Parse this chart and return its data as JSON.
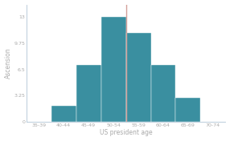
{
  "categories": [
    "35-39",
    "40-44",
    "45-49",
    "50-54",
    "55-59",
    "60-64",
    "65-69",
    "70-74"
  ],
  "values": [
    0,
    2,
    7,
    13,
    11,
    7,
    3,
    0
  ],
  "bar_color": "#3a8fa0",
  "vline_x": 4.0,
  "vline_color": "#d4a09a",
  "xlabel": "US president age",
  "ylabel": "Ascension",
  "yticks": [
    0,
    3.25,
    6.5,
    9.75,
    13
  ],
  "ytick_labels": [
    "0",
    "3.25",
    "6.5",
    "9.75",
    "13"
  ],
  "ylim": [
    0,
    14.5
  ],
  "background_color": "#ffffff",
  "axes_color": "#b0c4d4",
  "tick_color": "#aaaaaa",
  "label_fontsize": 5.5,
  "tick_fontsize": 4.5
}
